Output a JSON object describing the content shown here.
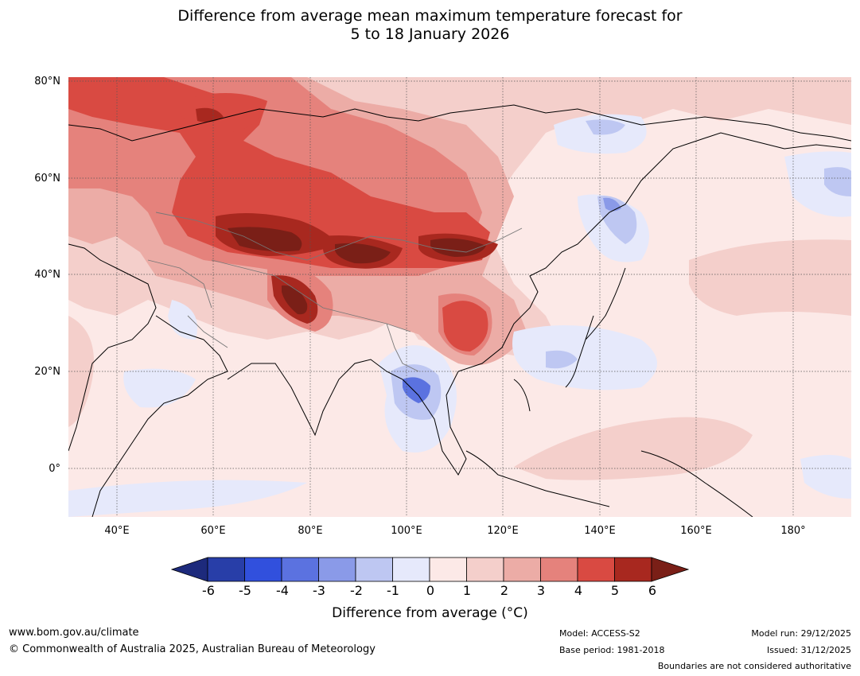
{
  "title": {
    "line1": "Difference from average mean maximum temperature forecast for",
    "line2": "5 to 18 January 2026"
  },
  "map": {
    "lat_labels": [
      "80°N",
      "60°N",
      "40°N",
      "20°N",
      "0°"
    ],
    "lon_labels": [
      "40°E",
      "60°E",
      "80°E",
      "100°E",
      "120°E",
      "140°E",
      "160°E",
      "180°"
    ],
    "boundaries_note": "Boundaries are not considered authoritative"
  },
  "legend": {
    "ticks": [
      "-6",
      "-5",
      "-4",
      "-3",
      "-2",
      "-1",
      "0",
      "1",
      "2",
      "3",
      "4",
      "5",
      "6"
    ],
    "colors": [
      "#1d2a7c",
      "#283ea8",
      "#3150dd",
      "#5b72e0",
      "#8a9ae8",
      "#bec7f2",
      "#e6e9fb",
      "#fce9e7",
      "#f4cfcb",
      "#ecaca6",
      "#e5827c",
      "#d94a42",
      "#a8281f",
      "#7a1f17"
    ],
    "label": "Difference from average (°C)"
  },
  "footer": {
    "website": "www.bom.gov.au/climate",
    "copyright": "© Commonwealth of Australia 2025, Australian Bureau of Meteorology",
    "model": "Model: ACCESS-S2",
    "base_period": "Base period: 1981-2018",
    "model_run": "Model run: 29/12/2025",
    "issued": "Issued: 31/12/2025"
  }
}
